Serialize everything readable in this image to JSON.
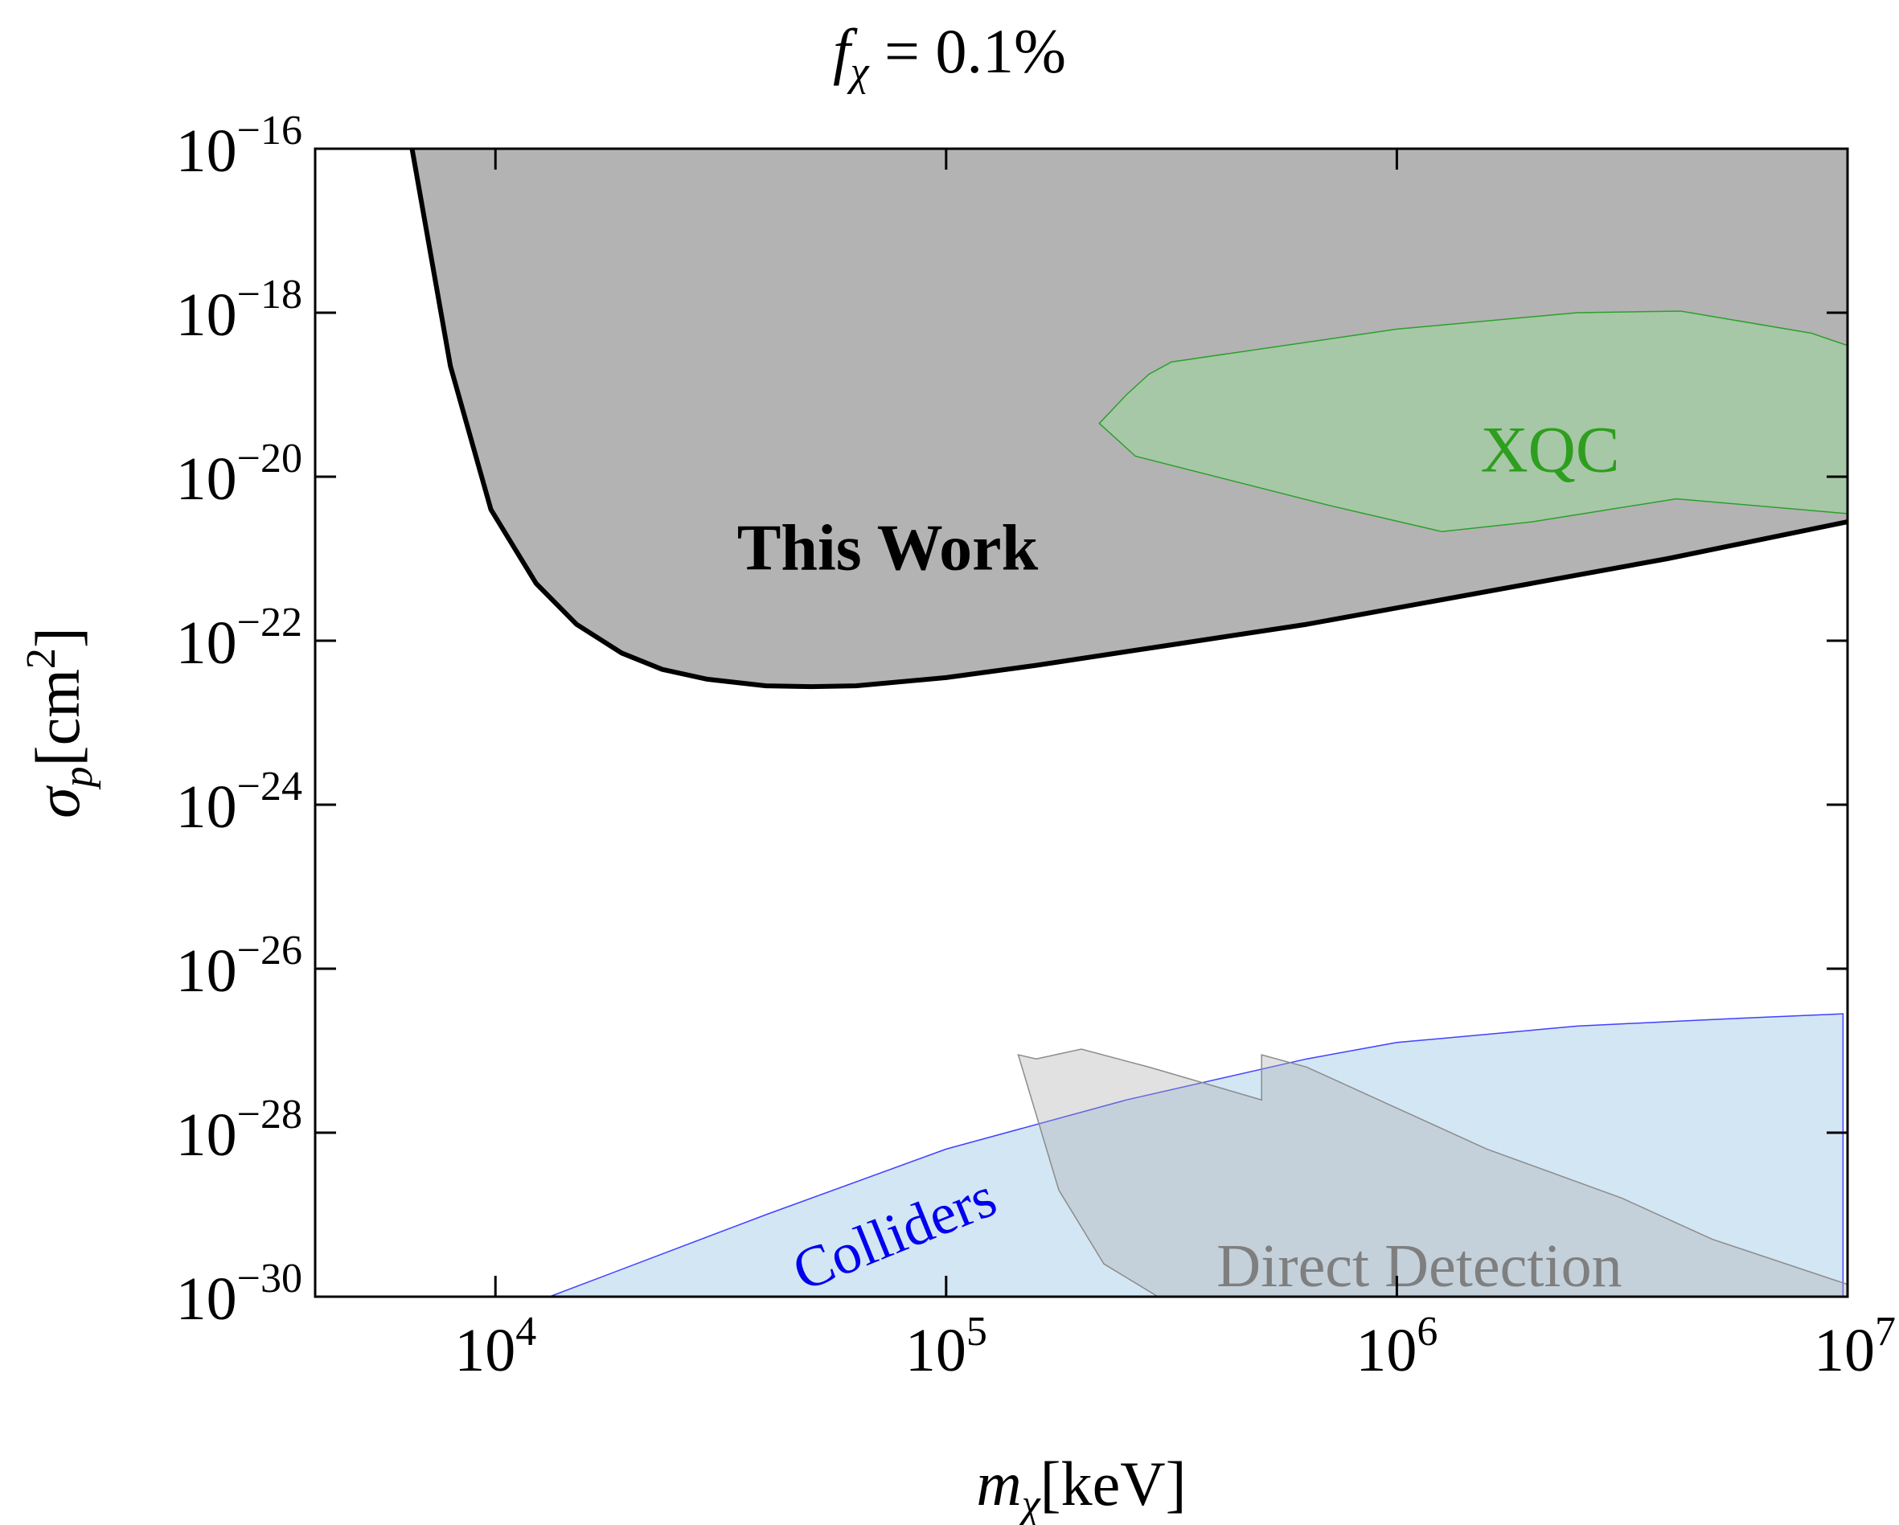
{
  "chart_data": {
    "type": "area",
    "title": "f_χ = 0.1%",
    "title_parts": {
      "var": "f",
      "sub": "χ",
      "rest": " = 0.1%"
    },
    "xlabel": "m_χ[keV]",
    "xlabel_parts": {
      "var": "m",
      "sub": "χ",
      "unit": "[keV]"
    },
    "ylabel": "σ_p[cm^2]",
    "ylabel_parts": {
      "var": "σ",
      "sub": "p",
      "unit": "[cm",
      "sup": "2",
      "close": "]"
    },
    "x_scale": "log",
    "y_scale": "log",
    "xlim_log10": [
      3.6,
      7.0
    ],
    "ylim_log10": [
      -30,
      -16
    ],
    "x_ticks": [
      {
        "exp": 4,
        "base": "10",
        "sup": "4"
      },
      {
        "exp": 5,
        "base": "10",
        "sup": "5"
      },
      {
        "exp": 6,
        "base": "10",
        "sup": "6"
      },
      {
        "exp": 7,
        "base": "10",
        "sup": "7"
      }
    ],
    "y_ticks": [
      {
        "exp": -16,
        "base": "10",
        "sup": "−16"
      },
      {
        "exp": -18,
        "base": "10",
        "sup": "−18"
      },
      {
        "exp": -20,
        "base": "10",
        "sup": "−20"
      },
      {
        "exp": -22,
        "base": "10",
        "sup": "−22"
      },
      {
        "exp": -24,
        "base": "10",
        "sup": "−24"
      },
      {
        "exp": -26,
        "base": "10",
        "sup": "−26"
      },
      {
        "exp": -28,
        "base": "10",
        "sup": "−28"
      },
      {
        "exp": -30,
        "base": "10",
        "sup": "−30"
      }
    ],
    "series": [
      {
        "name": "This Work",
        "fill": "#b3b3b3",
        "stroke": "#000000",
        "boundary_log10": [
          [
            3.815,
            -16.0
          ],
          [
            3.9,
            -18.65
          ],
          [
            3.99,
            -20.4
          ],
          [
            4.09,
            -21.3
          ],
          [
            4.18,
            -21.8
          ],
          [
            4.28,
            -22.15
          ],
          [
            4.37,
            -22.35
          ],
          [
            4.47,
            -22.47
          ],
          [
            4.6,
            -22.55
          ],
          [
            4.7,
            -22.56
          ],
          [
            4.8,
            -22.55
          ],
          [
            5.0,
            -22.45
          ],
          [
            5.2,
            -22.3
          ],
          [
            5.5,
            -22.05
          ],
          [
            5.8,
            -21.8
          ],
          [
            6.0,
            -21.6
          ],
          [
            6.3,
            -21.3
          ],
          [
            6.6,
            -21.0
          ],
          [
            7.0,
            -20.55
          ]
        ],
        "label_position_log10": [
          4.87,
          -20.95
        ]
      },
      {
        "name": "XQC",
        "fill": "#a6c8a6",
        "stroke": "#2ca02c",
        "polygon_log10": [
          [
            5.34,
            -19.35
          ],
          [
            5.4,
            -19.0
          ],
          [
            5.45,
            -18.75
          ],
          [
            5.5,
            -18.6
          ],
          [
            6.0,
            -18.2
          ],
          [
            6.4,
            -18.0
          ],
          [
            6.63,
            -17.98
          ],
          [
            6.92,
            -18.25
          ],
          [
            7.0,
            -18.4
          ],
          [
            7.0,
            -20.45
          ],
          [
            6.62,
            -20.27
          ],
          [
            6.3,
            -20.55
          ],
          [
            6.1,
            -20.67
          ],
          [
            5.85,
            -20.35
          ],
          [
            5.42,
            -19.75
          ]
        ],
        "label_position_log10": [
          6.34,
          -19.75
        ]
      },
      {
        "name": "Colliders",
        "fill": "#d3e6f4",
        "stroke": "#4040ff",
        "polygon_log10": [
          [
            4.12,
            -30.0
          ],
          [
            4.6,
            -29.0
          ],
          [
            5.0,
            -28.2
          ],
          [
            5.4,
            -27.6
          ],
          [
            5.8,
            -27.1
          ],
          [
            6.0,
            -26.9
          ],
          [
            6.4,
            -26.7
          ],
          [
            6.7,
            -26.62
          ],
          [
            6.99,
            -26.55
          ],
          [
            6.99,
            -30.0
          ]
        ],
        "label_position_log10": [
          4.89,
          -29.3
        ]
      },
      {
        "name": "Direct Detection",
        "fill": "#a8a8a8",
        "stroke": "#8c8c8c",
        "polygon_log10": [
          [
            5.16,
            -27.05
          ],
          [
            5.2,
            -27.1
          ],
          [
            5.3,
            -26.98
          ],
          [
            5.45,
            -27.2
          ],
          [
            5.7,
            -27.6
          ],
          [
            5.7,
            -27.05
          ],
          [
            5.8,
            -27.2
          ],
          [
            6.0,
            -27.7
          ],
          [
            6.2,
            -28.2
          ],
          [
            6.5,
            -28.8
          ],
          [
            6.7,
            -29.3
          ],
          [
            7.0,
            -29.85
          ],
          [
            7.0,
            -30.0
          ],
          [
            5.47,
            -30.0
          ],
          [
            5.35,
            -29.6
          ],
          [
            5.25,
            -28.7
          ]
        ],
        "label_position_log10": [
          6.05,
          -29.7
        ]
      }
    ]
  }
}
